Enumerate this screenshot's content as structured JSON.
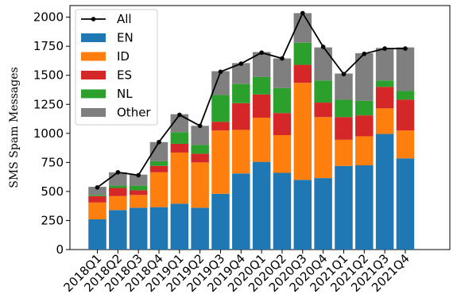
{
  "chart_data": {
    "type": "bar",
    "stacked": true,
    "categories": [
      "2018Q1",
      "2018Q2",
      "2018Q3",
      "2018Q4",
      "2019Q1",
      "2019Q2",
      "2019Q3",
      "2019Q4",
      "2020Q1",
      "2020Q2",
      "2020Q3",
      "2020Q4",
      "2021Q1",
      "2021Q2",
      "2021Q3",
      "2021Q4"
    ],
    "ylabel": "SMS Spam Messages",
    "xlabel": "",
    "ylim": [
      0,
      2100
    ],
    "yticks": [
      0,
      250,
      500,
      750,
      1000,
      1250,
      1500,
      1750,
      2000
    ],
    "legend_position": "upper-left",
    "series": [
      {
        "name": "EN",
        "color": "#1f77b4",
        "values": [
          260,
          340,
          360,
          365,
          395,
          360,
          480,
          655,
          755,
          660,
          600,
          615,
          720,
          725,
          995,
          785
        ]
      },
      {
        "name": "ID",
        "color": "#ff7f0e",
        "values": [
          145,
          120,
          110,
          300,
          440,
          390,
          545,
          375,
          380,
          325,
          835,
          525,
          225,
          250,
          220,
          240
        ]
      },
      {
        "name": "ES",
        "color": "#d62728",
        "values": [
          55,
          70,
          40,
          55,
          75,
          75,
          75,
          230,
          200,
          190,
          155,
          125,
          195,
          180,
          185,
          265
        ]
      },
      {
        "name": "NL",
        "color": "#2ca02c",
        "values": [
          10,
          20,
          40,
          40,
          100,
          75,
          230,
          165,
          150,
          215,
          190,
          190,
          150,
          125,
          55,
          75
        ]
      },
      {
        "name": "Other",
        "color": "#7f7f7f",
        "values": [
          70,
          115,
          95,
          165,
          155,
          165,
          205,
          180,
          215,
          255,
          255,
          285,
          225,
          410,
          280,
          375
        ]
      }
    ],
    "line": {
      "name": "All",
      "color": "#000000",
      "values": [
        535,
        665,
        640,
        925,
        1160,
        1065,
        1530,
        1600,
        1695,
        1645,
        2035,
        1745,
        1510,
        1685,
        1730,
        1730
      ]
    }
  }
}
